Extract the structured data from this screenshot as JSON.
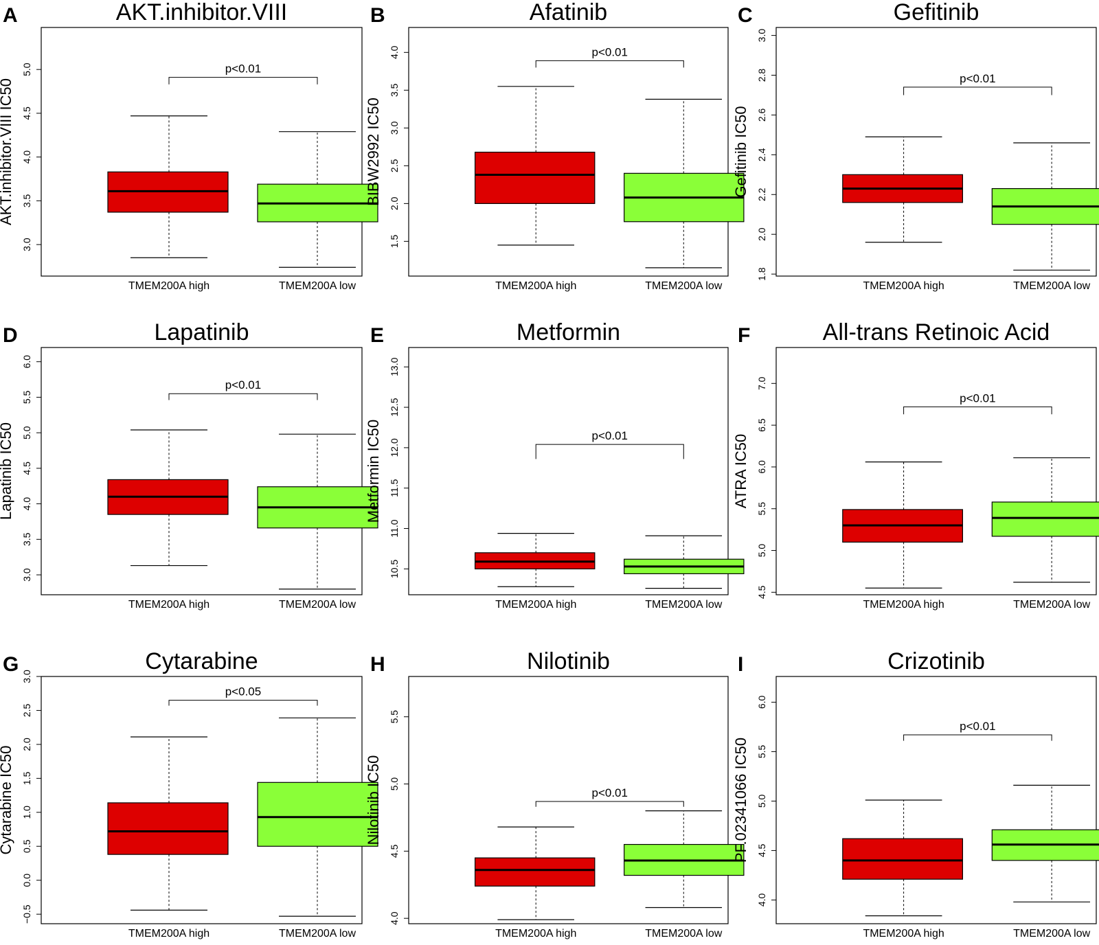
{
  "colors": {
    "high": "#dd0000",
    "low": "#8aff38",
    "axis": "#000000"
  },
  "chart_data": [
    {
      "type": "box",
      "panel": "A",
      "title": "AKT.inhibitor.VIII",
      "ylabel": "AKT.inhibitor.VIII IC50",
      "categories": [
        "TMEM200A high",
        "TMEM200A low"
      ],
      "ylim": [
        2.64,
        5.48
      ],
      "yticks": [
        3.0,
        3.5,
        4.0,
        4.5,
        5.0
      ],
      "tick_decimals": 1,
      "boxes": [
        {
          "name": "TMEM200A high",
          "min": 2.85,
          "q1": 3.37,
          "median": 3.61,
          "q3": 3.83,
          "max": 4.47
        },
        {
          "name": "TMEM200A low",
          "min": 2.74,
          "q1": 3.26,
          "median": 3.47,
          "q3": 3.69,
          "max": 4.29
        }
      ],
      "p_value": "p<0.01",
      "bracket_y": 4.91,
      "bracket_tick": 0.08
    },
    {
      "type": "box",
      "panel": "B",
      "title": "Afatinib",
      "ylabel": "BIBW2992 IC50",
      "categories": [
        "TMEM200A high",
        "TMEM200A low"
      ],
      "ylim": [
        1.04,
        4.33
      ],
      "yticks": [
        1.5,
        2.0,
        2.5,
        3.0,
        3.5,
        4.0
      ],
      "tick_decimals": 1,
      "boxes": [
        {
          "name": "TMEM200A high",
          "min": 1.45,
          "q1": 2.0,
          "median": 2.38,
          "q3": 2.68,
          "max": 3.55
        },
        {
          "name": "TMEM200A low",
          "min": 1.15,
          "q1": 1.76,
          "median": 2.08,
          "q3": 2.4,
          "max": 3.38
        }
      ],
      "p_value": "p<0.01",
      "bracket_y": 3.89,
      "bracket_tick": 0.09
    },
    {
      "type": "box",
      "panel": "C",
      "title": "Gefitinib",
      "ylabel": "Gefitinib IC50",
      "categories": [
        "TMEM200A high",
        "TMEM200A low"
      ],
      "ylim": [
        1.79,
        3.04
      ],
      "yticks": [
        1.8,
        2.0,
        2.2,
        2.4,
        2.6,
        2.8,
        3.0
      ],
      "tick_decimals": 1,
      "boxes": [
        {
          "name": "TMEM200A high",
          "min": 1.96,
          "q1": 2.16,
          "median": 2.23,
          "q3": 2.3,
          "max": 2.49
        },
        {
          "name": "TMEM200A low",
          "min": 1.82,
          "q1": 2.05,
          "median": 2.14,
          "q3": 2.23,
          "max": 2.46
        }
      ],
      "p_value": "p<0.01",
      "bracket_y": 2.74,
      "bracket_tick": 0.04
    },
    {
      "type": "box",
      "panel": "D",
      "title": "Lapatinib",
      "ylabel": "Lapatinib IC50",
      "categories": [
        "TMEM200A high",
        "TMEM200A low"
      ],
      "ylim": [
        2.72,
        6.2
      ],
      "yticks": [
        3.0,
        3.5,
        4.0,
        4.5,
        5.0,
        5.5,
        6.0
      ],
      "tick_decimals": 1,
      "boxes": [
        {
          "name": "TMEM200A high",
          "min": 3.13,
          "q1": 3.85,
          "median": 4.1,
          "q3": 4.34,
          "max": 5.04
        },
        {
          "name": "TMEM200A low",
          "min": 2.8,
          "q1": 3.66,
          "median": 3.95,
          "q3": 4.24,
          "max": 4.98
        }
      ],
      "p_value": "p<0.01",
      "bracket_y": 5.55,
      "bracket_tick": 0.09
    },
    {
      "type": "box",
      "panel": "E",
      "title": "Metformin",
      "ylabel": "Metformin IC50",
      "categories": [
        "TMEM200A high",
        "TMEM200A low"
      ],
      "ylim": [
        10.18,
        13.24
      ],
      "yticks": [
        10.5,
        11.0,
        11.5,
        12.0,
        12.5,
        13.0
      ],
      "tick_decimals": 1,
      "boxes": [
        {
          "name": "TMEM200A high",
          "min": 10.28,
          "q1": 10.5,
          "median": 10.59,
          "q3": 10.7,
          "max": 10.94
        },
        {
          "name": "TMEM200A low",
          "min": 10.26,
          "q1": 10.44,
          "median": 10.53,
          "q3": 10.62,
          "max": 10.91
        }
      ],
      "p_value": "p<0.01",
      "bracket_y": 12.04,
      "bracket_tick": 0.18
    },
    {
      "type": "box",
      "panel": "F",
      "title": "All-trans Retinoic Acid",
      "ylabel": "ATRA IC50",
      "categories": [
        "TMEM200A high",
        "TMEM200A low"
      ],
      "ylim": [
        4.47,
        7.43
      ],
      "yticks": [
        4.5,
        5.0,
        5.5,
        6.0,
        6.5,
        7.0
      ],
      "tick_decimals": 1,
      "boxes": [
        {
          "name": "TMEM200A high",
          "min": 4.55,
          "q1": 5.1,
          "median": 5.3,
          "q3": 5.49,
          "max": 6.06
        },
        {
          "name": "TMEM200A low",
          "min": 4.62,
          "q1": 5.17,
          "median": 5.39,
          "q3": 5.58,
          "max": 6.11
        }
      ],
      "p_value": "p<0.01",
      "bracket_y": 6.72,
      "bracket_tick": 0.09
    },
    {
      "type": "box",
      "panel": "G",
      "title": "Cytarabine",
      "ylabel": "Cytarabine IC50",
      "categories": [
        "TMEM200A high",
        "TMEM200A low"
      ],
      "ylim": [
        -0.64,
        3.0
      ],
      "yticks": [
        -0.5,
        0.0,
        0.5,
        1.0,
        1.5,
        2.0,
        2.5,
        3.0
      ],
      "tick_decimals": 1,
      "boxes": [
        {
          "name": "TMEM200A high",
          "min": -0.44,
          "q1": 0.38,
          "median": 0.72,
          "q3": 1.14,
          "max": 2.11
        },
        {
          "name": "TMEM200A low",
          "min": -0.53,
          "q1": 0.5,
          "median": 0.93,
          "q3": 1.44,
          "max": 2.39
        }
      ],
      "p_value": "p<0.05",
      "bracket_y": 2.65,
      "bracket_tick": 0.08
    },
    {
      "type": "box",
      "panel": "H",
      "title": "Nilotinib",
      "ylabel": "Nilotinib IC50",
      "categories": [
        "TMEM200A high",
        "TMEM200A low"
      ],
      "ylim": [
        3.96,
        5.8
      ],
      "yticks": [
        4.0,
        4.5,
        5.0,
        5.5
      ],
      "tick_decimals": 1,
      "boxes": [
        {
          "name": "TMEM200A high",
          "min": 3.99,
          "q1": 4.24,
          "median": 4.36,
          "q3": 4.45,
          "max": 4.68
        },
        {
          "name": "TMEM200A low",
          "min": 4.08,
          "q1": 4.32,
          "median": 4.43,
          "q3": 4.55,
          "max": 4.8
        }
      ],
      "p_value": "p<0.01",
      "bracket_y": 4.87,
      "bracket_tick": 0.04
    },
    {
      "type": "box",
      "panel": "I",
      "title": "Crizotinib",
      "ylabel": "PF.02341066 IC50",
      "categories": [
        "TMEM200A high",
        "TMEM200A low"
      ],
      "ylim": [
        3.76,
        6.26
      ],
      "yticks": [
        4.0,
        4.5,
        5.0,
        5.5,
        6.0
      ],
      "tick_decimals": 1,
      "boxes": [
        {
          "name": "TMEM200A high",
          "min": 3.84,
          "q1": 4.21,
          "median": 4.4,
          "q3": 4.62,
          "max": 5.01
        },
        {
          "name": "TMEM200A low",
          "min": 3.98,
          "q1": 4.4,
          "median": 4.56,
          "q3": 4.71,
          "max": 5.16
        }
      ],
      "p_value": "p<0.01",
      "bracket_y": 5.67,
      "bracket_tick": 0.06
    }
  ]
}
